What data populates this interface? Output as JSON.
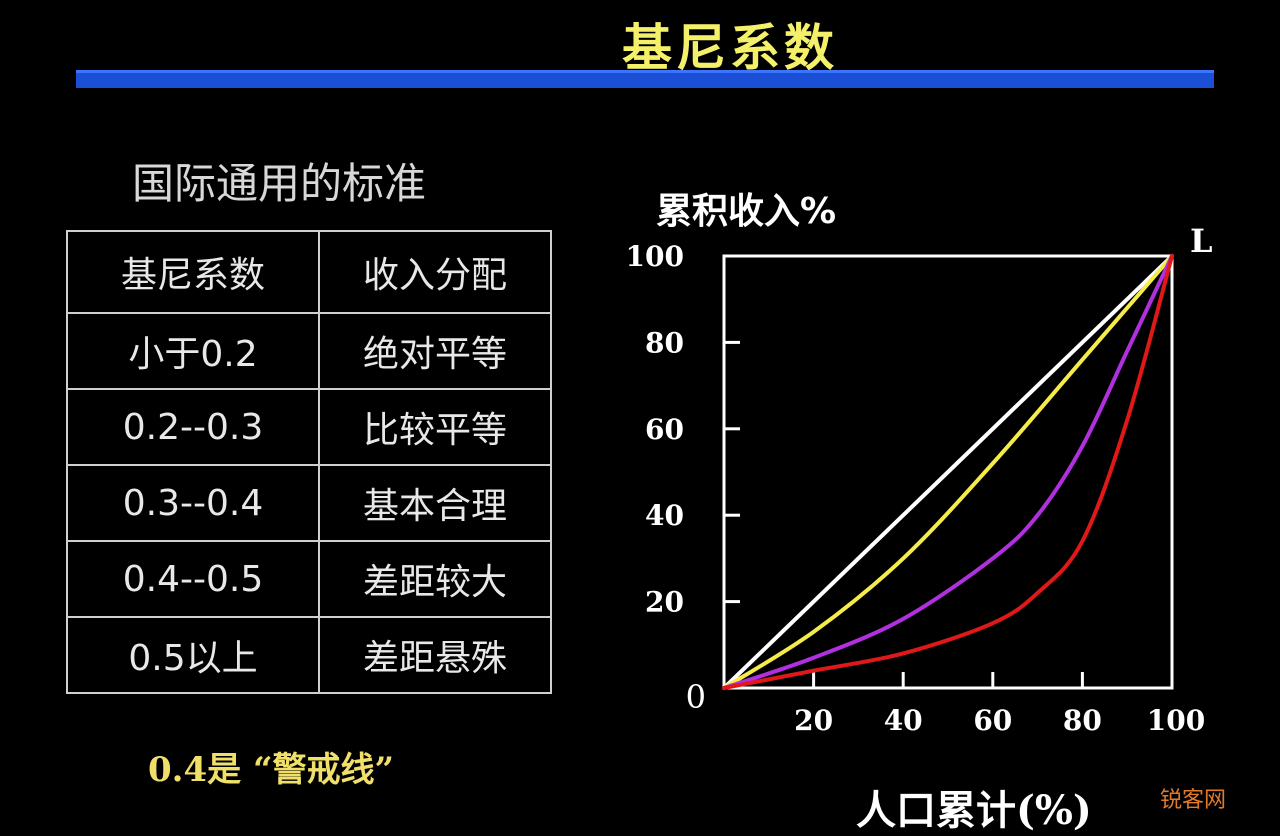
{
  "title": "基尼系数",
  "subheading": "国际通用的标准",
  "table": {
    "headers": [
      "基尼系数",
      "收入分配"
    ],
    "rows": [
      [
        "小于0.2",
        "绝对平等"
      ],
      [
        "0.2--0.3",
        "比较平等"
      ],
      [
        "0.3--0.4",
        "基本合理"
      ],
      [
        "0.4--0.5",
        "差距较大"
      ],
      [
        "0.5以上",
        "差距悬殊"
      ]
    ]
  },
  "warning_text": "0.4是 “警戒线”",
  "watermark": "锐客网",
  "colors": {
    "title": "#f5f06a",
    "bar": "#1a4fd6",
    "equality_line": "#ffffff",
    "curve_yellow": "#f5ec4a",
    "curve_purple": "#b030e0",
    "curve_red": "#e01818"
  },
  "chart_data": {
    "type": "line",
    "ylabel": "累积收入%",
    "xlabel": "人口累计(%)",
    "origin_label": "0",
    "corner_label": "L",
    "xlim": [
      0,
      100
    ],
    "ylim": [
      0,
      100
    ],
    "x_ticks": [
      20,
      40,
      60,
      80,
      100
    ],
    "y_ticks": [
      20,
      40,
      60,
      80,
      100
    ],
    "series": [
      {
        "x": [
          0,
          100
        ],
        "y": [
          0,
          100
        ],
        "color": "#ffffff"
      },
      {
        "x": [
          0,
          20,
          40,
          60,
          80,
          100
        ],
        "y": [
          0,
          13,
          30,
          52,
          76,
          100
        ],
        "color": "#f5ec4a"
      },
      {
        "x": [
          0,
          20,
          40,
          60,
          70,
          80,
          90,
          100
        ],
        "y": [
          0,
          7,
          16,
          30,
          40,
          56,
          78,
          100
        ],
        "color": "#b030e0"
      },
      {
        "x": [
          0,
          20,
          40,
          60,
          70,
          80,
          90,
          100
        ],
        "y": [
          0,
          4,
          8,
          15,
          22,
          34,
          62,
          100
        ],
        "color": "#e01818"
      }
    ]
  }
}
